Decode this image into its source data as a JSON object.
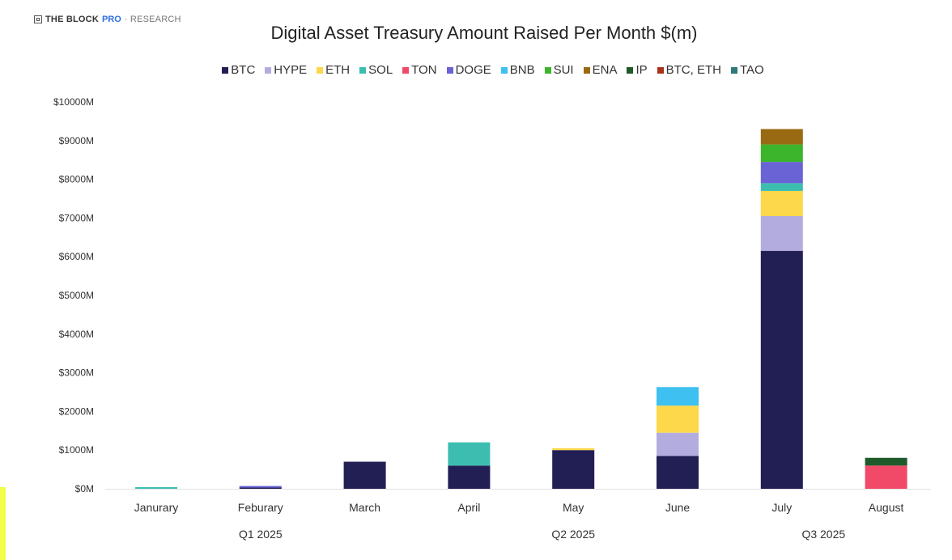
{
  "brand": {
    "part1": "THE BLOCK",
    "part2": "PRO",
    "part3": "· RESEARCH",
    "icon": "block-logo-icon"
  },
  "chart_data": {
    "type": "bar",
    "stacked": true,
    "title": "Digital Asset Treasury Amount Raised Per Month $(m)",
    "xlabel": "",
    "ylabel": "",
    "ylim": [
      0,
      10000
    ],
    "grid": false,
    "legend_position": "top",
    "y_ticks": [
      "$0M",
      "$1000M",
      "$2000M",
      "$3000M",
      "$4000M",
      "$5000M",
      "$6000M",
      "$7000M",
      "$8000M",
      "$9000M",
      "$10000M"
    ],
    "y_tick_values": [
      0,
      1000,
      2000,
      3000,
      4000,
      5000,
      6000,
      7000,
      8000,
      9000,
      10000
    ],
    "categories": [
      "Janurary",
      "Feburary",
      "March",
      "April",
      "May",
      "June",
      "July",
      "August"
    ],
    "quarter_labels": [
      "Q1 2025",
      "Q2 2025",
      "Q3 2025"
    ],
    "series": [
      {
        "name": "BTC",
        "color": "#221f55",
        "values": [
          0,
          30,
          700,
          600,
          1000,
          850,
          6150,
          0
        ]
      },
      {
        "name": "HYPE",
        "color": "#b3addf",
        "values": [
          0,
          0,
          0,
          0,
          0,
          600,
          900,
          0
        ]
      },
      {
        "name": "ETH",
        "color": "#fcd84a",
        "values": [
          0,
          0,
          0,
          0,
          50,
          700,
          650,
          0
        ]
      },
      {
        "name": "SOL",
        "color": "#3cbdb0",
        "values": [
          40,
          0,
          0,
          600,
          0,
          0,
          200,
          0
        ]
      },
      {
        "name": "TON",
        "color": "#f04a68",
        "values": [
          0,
          0,
          0,
          0,
          0,
          0,
          0,
          600
        ]
      },
      {
        "name": "DOGE",
        "color": "#6a63d6",
        "values": [
          0,
          30,
          0,
          0,
          0,
          0,
          550,
          0
        ]
      },
      {
        "name": "BNB",
        "color": "#3ec0f0",
        "values": [
          0,
          0,
          0,
          0,
          0,
          480,
          0,
          0
        ]
      },
      {
        "name": "SUI",
        "color": "#3cb52c",
        "values": [
          0,
          0,
          0,
          0,
          0,
          0,
          450,
          0
        ]
      },
      {
        "name": "ENA",
        "color": "#9a6a12",
        "values": [
          0,
          0,
          0,
          0,
          0,
          0,
          400,
          0
        ]
      },
      {
        "name": "IP",
        "color": "#1e5a2a",
        "values": [
          0,
          0,
          0,
          0,
          0,
          0,
          0,
          200
        ]
      },
      {
        "name": "BTC, ETH",
        "color": "#a8321a",
        "values": [
          0,
          0,
          0,
          0,
          0,
          0,
          0,
          0
        ]
      },
      {
        "name": "TAO",
        "color": "#2d7a78",
        "values": [
          0,
          0,
          0,
          0,
          0,
          0,
          0,
          0
        ]
      }
    ]
  }
}
